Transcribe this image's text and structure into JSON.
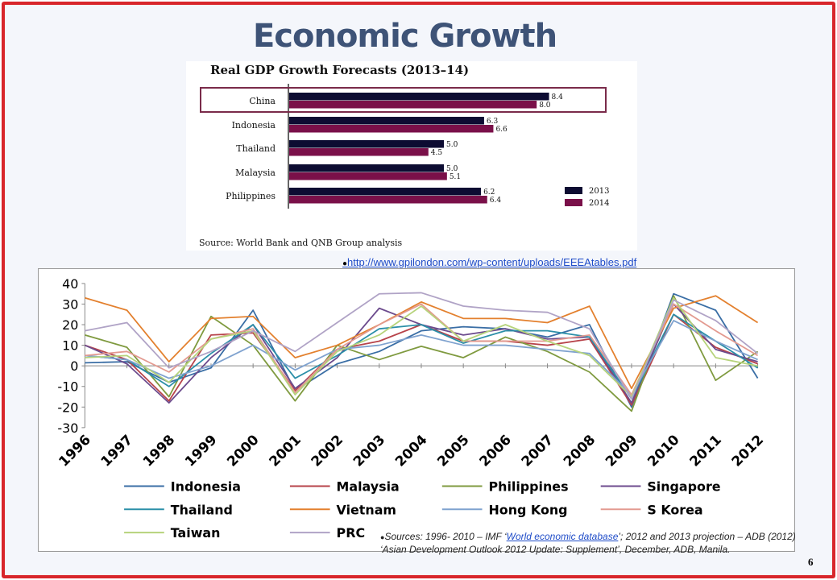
{
  "slide": {
    "title": "Economic Growth",
    "link": "http://www.gpilondon.com/wp-content/uploads/EEEAtables.pdf",
    "sources_prefix": "Sources: 1996- 2010 – IMF ‘",
    "sources_link": "World economic database",
    "sources_suffix": "’; 2012 and 2013 projection – ADB (2012) ‘Asian Development Outlook 2012 Update: Supplement’, December, ADB, Manila.",
    "page_number": "6",
    "colors": {
      "frame": "#d8262b",
      "title": "#3e5377",
      "link": "#1f4cc8"
    }
  },
  "chart_data": [
    {
      "type": "bar",
      "title": "Real GDP Growth Forecasts (2013–14)",
      "categories": [
        "China",
        "Indonesia",
        "Thailand",
        "Malaysia",
        "Philippines"
      ],
      "series": [
        {
          "name": "2013",
          "values": [
            8.4,
            6.3,
            5.0,
            5.0,
            6.2
          ],
          "color": "#0d0c32"
        },
        {
          "name": "2014",
          "values": [
            8.0,
            6.6,
            4.5,
            5.1,
            6.4
          ],
          "color": "#7a1049"
        }
      ],
      "value_labels": [
        [
          "8.4",
          "6.3",
          "5.0",
          "5.0",
          "6.2"
        ],
        [
          "8.0",
          "6.6",
          "4.5",
          "5.1",
          "6.4"
        ]
      ],
      "highlight": "China",
      "source": "Source: World Bank and QNB Group analysis",
      "xlim": [
        0,
        9
      ],
      "legend": "bottom-right"
    },
    {
      "type": "line",
      "x": [
        "1996",
        "1997",
        "1998",
        "1999",
        "2000",
        "2001",
        "2002",
        "2003",
        "2004",
        "2005",
        "2006",
        "2007",
        "2008",
        "2009",
        "2010",
        "2011",
        "2012"
      ],
      "ylim": [
        -30,
        40
      ],
      "yticks": [
        40,
        30,
        20,
        10,
        0,
        -10,
        -20,
        -30
      ],
      "grid": false,
      "legend": "bottom",
      "series": [
        {
          "name": "Indonesia",
          "color": "#3a6ea5",
          "values": [
            1.5,
            2,
            -8,
            -1,
            27,
            -12,
            1,
            7,
            17,
            19,
            18,
            14,
            20,
            -20,
            35,
            27,
            -6
          ]
        },
        {
          "name": "Malaysia",
          "color": "#b7434a",
          "values": [
            10,
            3,
            -17,
            15,
            16,
            -12,
            8,
            12,
            20,
            12,
            12,
            10,
            13,
            -19,
            25,
            9,
            1
          ]
        },
        {
          "name": "Philippines",
          "color": "#7f9a3f",
          "values": [
            15,
            9,
            -15,
            24,
            10,
            -17,
            10,
            3,
            9.5,
            4,
            14,
            7,
            -3,
            -22,
            34,
            -7,
            7
          ]
        },
        {
          "name": "Singapore",
          "color": "#6c4b8d",
          "values": [
            10,
            1,
            -18,
            4,
            20,
            -11,
            4,
            28,
            20,
            15,
            18,
            13,
            14,
            -18,
            30,
            8,
            2
          ]
        },
        {
          "name": "Thailand",
          "color": "#2b8fa8",
          "values": [
            5,
            3,
            -10,
            6,
            20,
            -6,
            5,
            18,
            20,
            11,
            17,
            17,
            14,
            -16,
            25,
            12,
            -1
          ]
        },
        {
          "name": "Vietnam",
          "color": "#e3802e",
          "values": [
            33,
            27,
            2,
            23,
            24,
            4,
            10,
            20,
            31,
            23,
            23,
            21,
            29,
            -11,
            28,
            34,
            21
          ]
        },
        {
          "name": "Hong Kong",
          "color": "#7fa2cf",
          "values": [
            5,
            3,
            -6,
            0,
            10,
            -2,
            8,
            10,
            15,
            10,
            10,
            8,
            6,
            -14,
            22,
            12,
            3
          ]
        },
        {
          "name": "S Korea",
          "color": "#e39a90",
          "values": [
            5,
            7,
            -3,
            13,
            18,
            -13,
            8,
            20,
            30,
            12,
            12,
            12,
            15,
            -14,
            30,
            17,
            5
          ]
        },
        {
          "name": "Taiwan",
          "color": "#b6d37b",
          "values": [
            4,
            5,
            -8,
            13,
            17,
            -14,
            7,
            15,
            29,
            12,
            20,
            12,
            5,
            -15,
            33,
            4,
            0
          ]
        },
        {
          "name": "PRC",
          "color": "#b0a3c6",
          "values": [
            17,
            21,
            -1,
            7,
            17,
            7,
            21,
            35,
            35.5,
            29,
            27,
            26,
            18,
            -16,
            32,
            22,
            6
          ]
        }
      ]
    }
  ]
}
